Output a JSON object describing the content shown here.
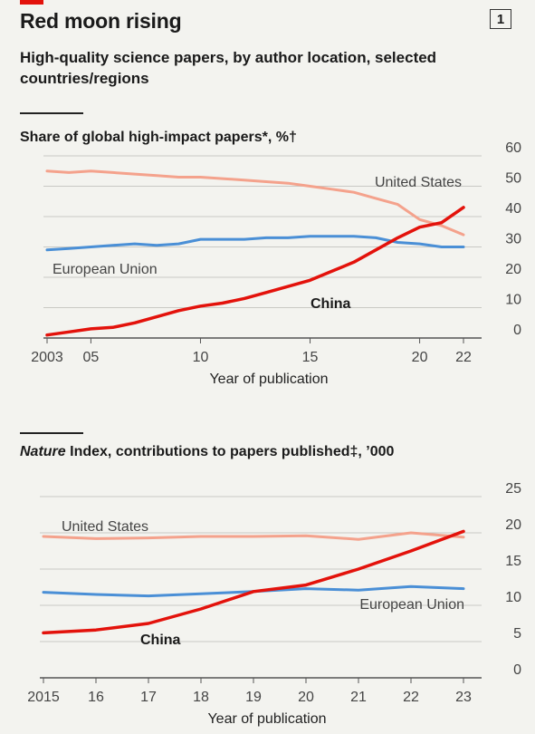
{
  "header": {
    "title": "Red moon rising",
    "badge": "1",
    "subtitle": "High-quality science papers, by author location, selected countries/regions"
  },
  "colors": {
    "china": "#e3120b",
    "united_states": "#f4a28c",
    "european_union": "#4a8fd6",
    "grid": "#c9c9c4",
    "background": "#f3f3ef"
  },
  "chart_data": [
    {
      "type": "line",
      "title": "Share of global high-impact papers*, %†",
      "xlabel": "Year of publication",
      "ylabel": "",
      "xlim": [
        2003,
        2022
      ],
      "ylim": [
        0,
        60
      ],
      "y_ticks": [
        "0",
        "10",
        "20",
        "30",
        "40",
        "50",
        "60"
      ],
      "x_ticks": [
        {
          "x": 2003,
          "label": "2003"
        },
        {
          "x": 2005,
          "label": "05"
        },
        {
          "x": 2010,
          "label": "10"
        },
        {
          "x": 2015,
          "label": "15"
        },
        {
          "x": 2020,
          "label": "20"
        },
        {
          "x": 2022,
          "label": "22"
        }
      ],
      "grid": true,
      "x": [
        2003,
        2004,
        2005,
        2006,
        2007,
        2008,
        2009,
        2010,
        2011,
        2012,
        2013,
        2014,
        2015,
        2016,
        2017,
        2018,
        2019,
        2020,
        2021,
        2022
      ],
      "series": [
        {
          "name": "United States",
          "key": "united_states",
          "values": [
            55,
            54.5,
            55,
            54.5,
            54,
            53.5,
            53,
            53,
            52.5,
            52,
            51.5,
            51,
            50,
            49,
            48,
            46,
            44,
            39,
            37,
            34
          ]
        },
        {
          "name": "European Union",
          "key": "european_union",
          "values": [
            29,
            29.5,
            30,
            30.5,
            31,
            30.5,
            31,
            32.5,
            32.5,
            32.5,
            33,
            33,
            33.5,
            33.5,
            33.5,
            33,
            31.5,
            31,
            30,
            30
          ]
        },
        {
          "name": "China",
          "key": "china",
          "values": [
            1,
            2,
            3,
            3.5,
            5,
            7,
            9,
            10.5,
            11.5,
            13,
            15,
            17,
            19,
            22,
            25,
            29,
            33,
            36.5,
            38,
            43
          ]
        }
      ]
    },
    {
      "type": "line",
      "title": "Nature Index, contributions to papers published‡, ’000",
      "title_italic": "Nature",
      "title_rest": " Index, contributions to papers published‡, ’000",
      "xlabel": "Year of publication",
      "ylabel": "",
      "xlim": [
        2015,
        2023
      ],
      "ylim": [
        0,
        25
      ],
      "y_ticks": [
        "0",
        "5",
        "10",
        "15",
        "20",
        "25"
      ],
      "x_ticks": [
        {
          "x": 2015,
          "label": "2015"
        },
        {
          "x": 2016,
          "label": "16"
        },
        {
          "x": 2017,
          "label": "17"
        },
        {
          "x": 2018,
          "label": "18"
        },
        {
          "x": 2019,
          "label": "19"
        },
        {
          "x": 2020,
          "label": "20"
        },
        {
          "x": 2021,
          "label": "21"
        },
        {
          "x": 2022,
          "label": "22"
        },
        {
          "x": 2023,
          "label": "23"
        }
      ],
      "grid": true,
      "x": [
        2015,
        2016,
        2017,
        2018,
        2019,
        2020,
        2021,
        2022,
        2023
      ],
      "series": [
        {
          "name": "United States",
          "key": "united_states",
          "values": [
            19.5,
            19.2,
            19.3,
            19.5,
            19.5,
            19.6,
            19.1,
            20,
            19.4
          ]
        },
        {
          "name": "European Union",
          "key": "european_union",
          "values": [
            11.8,
            11.5,
            11.3,
            11.6,
            11.9,
            12.3,
            12.1,
            12.6,
            12.3
          ]
        },
        {
          "name": "China",
          "key": "china",
          "values": [
            6.2,
            6.6,
            7.5,
            9.5,
            11.9,
            12.8,
            15.0,
            17.5,
            20.2
          ]
        }
      ]
    }
  ]
}
